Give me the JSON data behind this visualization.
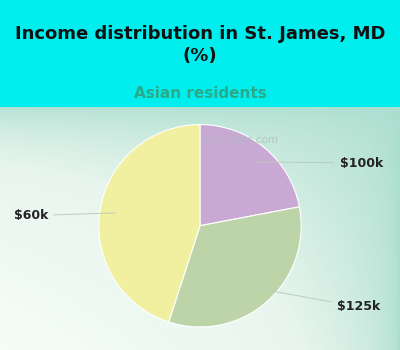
{
  "title": "Income distribution in St. James, MD\n(%)",
  "subtitle": "Asian residents",
  "title_color": "#111111",
  "subtitle_color": "#2aaa88",
  "title_fontsize": 13,
  "subtitle_fontsize": 11,
  "top_bg_color": "#00EEEE",
  "slices": [
    {
      "label": "$100k",
      "value": 22,
      "color": "#c9a8d4"
    },
    {
      "label": "$125k",
      "value": 33,
      "color": "#bdd4a8"
    },
    {
      "label": "$60k",
      "value": 45,
      "color": "#f0f0a0"
    }
  ],
  "label_color": "#222222",
  "label_fontsize": 9,
  "startangle": 90,
  "figsize": [
    4.0,
    3.5
  ],
  "dpi": 100,
  "watermark": "City-Data.com",
  "chart_bg_colors": [
    "#aadece",
    "#d0eee0",
    "#e8f5ee",
    "#f5fdf8"
  ]
}
